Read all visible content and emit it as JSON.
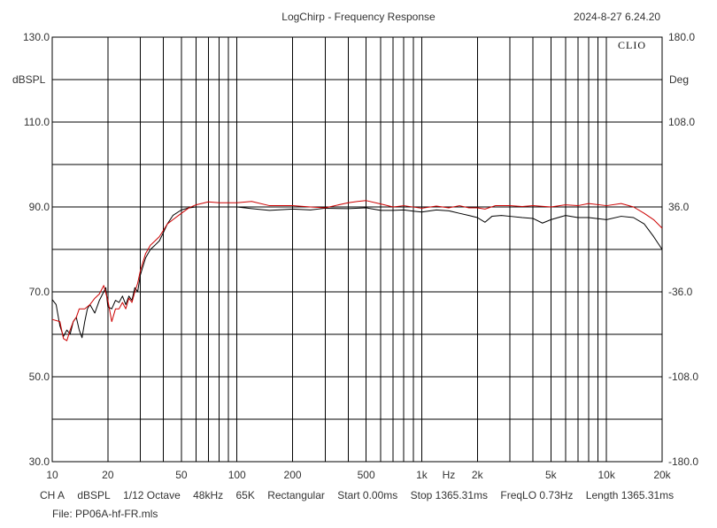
{
  "header": {
    "title": "LogChirp - Frequency Response",
    "timestamp": "2024-8-27 6.24.20"
  },
  "brand": "CLIO",
  "units": {
    "left": "dBSPL",
    "right": "Deg"
  },
  "footer": {
    "channel": "CH A",
    "unit": "dBSPL",
    "smoothing": "1/12 Octave",
    "sample_rate": "48kHz",
    "size": "65K",
    "window": "Rectangular",
    "start": "Start 0.00ms",
    "stop": "Stop 1365.31ms",
    "freqlo": "FreqLO 0.73Hz",
    "length": "Length 1365.31ms",
    "file": "File: PP06A-hf-FR.mls"
  },
  "colors": {
    "grid": "#000000",
    "series_black": "#000000",
    "series_red": "#cc0000"
  },
  "chart_data": {
    "type": "line",
    "xscale": "log",
    "xlim": [
      10,
      20000
    ],
    "ylim": [
      30,
      130
    ],
    "y2lim": [
      -180,
      180
    ],
    "grid": true,
    "x_ticks": [
      {
        "v": 10,
        "label": "10"
      },
      {
        "v": 20,
        "label": "20"
      },
      {
        "v": 50,
        "label": "50"
      },
      {
        "v": 100,
        "label": "100"
      },
      {
        "v": 200,
        "label": "200"
      },
      {
        "v": 500,
        "label": "500"
      },
      {
        "v": 1000,
        "label": "1k"
      },
      {
        "v": 2000,
        "label": "2k"
      },
      {
        "v": 5000,
        "label": "5k"
      },
      {
        "v": 10000,
        "label": "10k"
      },
      {
        "v": 20000,
        "label": "20k"
      }
    ],
    "x_unit_label": "Hz",
    "y_ticks": [
      {
        "v": 130,
        "label": "130.0"
      },
      {
        "v": 110,
        "label": "110.0"
      },
      {
        "v": 90,
        "label": "90.0"
      },
      {
        "v": 70,
        "label": "70.0"
      },
      {
        "v": 50,
        "label": "50.0"
      },
      {
        "v": 30,
        "label": "30.0"
      }
    ],
    "y2_ticks": [
      {
        "v": 180,
        "label": "180.0"
      },
      {
        "v": 108,
        "label": "108.0"
      },
      {
        "v": 36,
        "label": "36.0"
      },
      {
        "v": -36,
        "label": "-36.0"
      },
      {
        "v": -108,
        "label": "-108.0"
      },
      {
        "v": -180,
        "label": "-180.0"
      }
    ],
    "series": [
      {
        "color": "#000000",
        "points": [
          [
            10,
            68.2
          ],
          [
            10.5,
            67
          ],
          [
            11,
            62
          ],
          [
            11.5,
            59.5
          ],
          [
            12,
            61
          ],
          [
            12.5,
            60
          ],
          [
            13,
            63
          ],
          [
            13.5,
            64
          ],
          [
            14,
            61
          ],
          [
            14.5,
            59.2
          ],
          [
            15,
            63
          ],
          [
            15.5,
            66
          ],
          [
            16,
            67
          ],
          [
            17,
            65
          ],
          [
            18,
            68
          ],
          [
            19,
            70
          ],
          [
            19.5,
            71
          ],
          [
            20,
            66.5
          ],
          [
            21,
            66
          ],
          [
            22,
            68
          ],
          [
            23,
            67.5
          ],
          [
            24,
            69
          ],
          [
            25,
            67
          ],
          [
            26,
            69
          ],
          [
            27,
            68
          ],
          [
            28,
            71
          ],
          [
            29,
            70
          ],
          [
            30,
            74
          ],
          [
            32,
            78
          ],
          [
            34,
            80
          ],
          [
            36,
            81
          ],
          [
            38,
            82
          ],
          [
            40,
            84
          ],
          [
            42,
            86
          ],
          [
            45,
            88
          ],
          [
            50,
            89.3
          ],
          [
            55,
            89.8
          ],
          [
            60,
            90
          ],
          [
            70,
            90
          ],
          [
            80,
            90
          ],
          [
            100,
            90
          ],
          [
            120,
            89.6
          ],
          [
            150,
            89.2
          ],
          [
            200,
            89.5
          ],
          [
            250,
            89.3
          ],
          [
            300,
            89.7
          ],
          [
            400,
            89.6
          ],
          [
            500,
            89.8
          ],
          [
            600,
            89.2
          ],
          [
            700,
            89.2
          ],
          [
            800,
            89.3
          ],
          [
            900,
            89
          ],
          [
            1000,
            88.8
          ],
          [
            1200,
            89.3
          ],
          [
            1400,
            89.1
          ],
          [
            1600,
            88.5
          ],
          [
            1800,
            88
          ],
          [
            2000,
            87.5
          ],
          [
            2200,
            86.4
          ],
          [
            2400,
            87.8
          ],
          [
            2700,
            88
          ],
          [
            3000,
            87.8
          ],
          [
            3500,
            87.5
          ],
          [
            4000,
            87.3
          ],
          [
            4500,
            86.2
          ],
          [
            5000,
            87
          ],
          [
            6000,
            88
          ],
          [
            7000,
            87.5
          ],
          [
            8000,
            87.5
          ],
          [
            10000,
            87
          ],
          [
            12000,
            87.8
          ],
          [
            14000,
            87.5
          ],
          [
            16000,
            86
          ],
          [
            18000,
            83
          ],
          [
            20000,
            80
          ]
        ]
      },
      {
        "color": "#cc0000",
        "points": [
          [
            10,
            63.5
          ],
          [
            11,
            63
          ],
          [
            11.5,
            59
          ],
          [
            12,
            58.5
          ],
          [
            12.5,
            61
          ],
          [
            13,
            63
          ],
          [
            13.5,
            64
          ],
          [
            14,
            66
          ],
          [
            15,
            66
          ],
          [
            16,
            67
          ],
          [
            17,
            68.5
          ],
          [
            18,
            69.5
          ],
          [
            19,
            71.5
          ],
          [
            20,
            68
          ],
          [
            21,
            63
          ],
          [
            22,
            66
          ],
          [
            23,
            66
          ],
          [
            24,
            67.5
          ],
          [
            25,
            66
          ],
          [
            26,
            68.5
          ],
          [
            27,
            67.5
          ],
          [
            28,
            70
          ],
          [
            29,
            72
          ],
          [
            30,
            75
          ],
          [
            32,
            79
          ],
          [
            34,
            81
          ],
          [
            36,
            82
          ],
          [
            38,
            83
          ],
          [
            40,
            84.5
          ],
          [
            42,
            86
          ],
          [
            45,
            87
          ],
          [
            50,
            88.5
          ],
          [
            55,
            89.8
          ],
          [
            60,
            90.5
          ],
          [
            70,
            91.2
          ],
          [
            80,
            91
          ],
          [
            100,
            91
          ],
          [
            120,
            91.3
          ],
          [
            150,
            90.3
          ],
          [
            200,
            90.3
          ],
          [
            250,
            90
          ],
          [
            300,
            89.8
          ],
          [
            400,
            91
          ],
          [
            450,
            91.3
          ],
          [
            500,
            91.5
          ],
          [
            600,
            90.7
          ],
          [
            700,
            90
          ],
          [
            800,
            90.3
          ],
          [
            1000,
            89.7
          ],
          [
            1200,
            90.2
          ],
          [
            1400,
            89.8
          ],
          [
            1600,
            90.3
          ],
          [
            1800,
            89.8
          ],
          [
            2000,
            89.8
          ],
          [
            2200,
            89.5
          ],
          [
            2500,
            90.3
          ],
          [
            3000,
            90.3
          ],
          [
            3500,
            90.1
          ],
          [
            4000,
            90.3
          ],
          [
            5000,
            90
          ],
          [
            6000,
            90.5
          ],
          [
            7000,
            90.3
          ],
          [
            8000,
            90.8
          ],
          [
            10000,
            90.3
          ],
          [
            12000,
            90.8
          ],
          [
            14000,
            90
          ],
          [
            16000,
            88.5
          ],
          [
            18000,
            87
          ],
          [
            20000,
            85
          ]
        ]
      }
    ]
  }
}
